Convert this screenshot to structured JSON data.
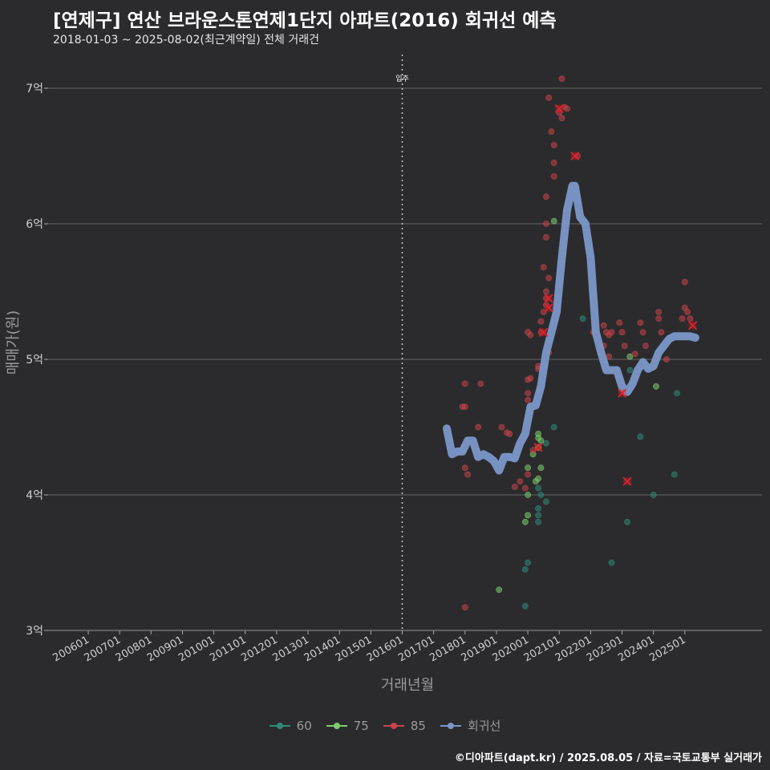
{
  "header": {
    "title": "[연제구] 연산 브라운스톤연제1단지 아파트(2016) 회귀선 예측",
    "subtitle": "2018-01-03 ~ 2025-08-02(최근계약일) 전체 거래건"
  },
  "caption": "©디아파트(dapt.kr) / 2025.08.05 / 자료=국토교통부 실거래가",
  "colors": {
    "background": "#2b2b2d",
    "grid": "#5a5a5a",
    "s60": "#2e8b7a",
    "s75": "#7ccd6b",
    "s85": "#c8434a",
    "regression": "#7b97c9",
    "highlight_x": "#e0202a"
  },
  "legend": {
    "items": [
      {
        "label": "60",
        "color": "#2e8b7a"
      },
      {
        "label": "75",
        "color": "#7ccd6b"
      },
      {
        "label": "85",
        "color": "#c8434a"
      },
      {
        "label": "회귀선",
        "color": "#7b97c9"
      }
    ]
  },
  "chart_data": {
    "type": "scatter",
    "title": "[연제구] 연산 브라운스톤연제1단지 아파트(2016) 회귀선 예측",
    "subtitle": "2018-01-03 ~ 2025-08-02(최근계약일) 전체 거래건",
    "xlabel": "거래년월",
    "ylabel": "매매가(원)",
    "xlim": [
      "2005-01",
      "2026-10"
    ],
    "ylim": [
      3.0,
      7.25
    ],
    "grid": true,
    "legend_position": "bottom",
    "x_ticks": [
      "200601",
      "200701",
      "200801",
      "200901",
      "201001",
      "201101",
      "201201",
      "201301",
      "201401",
      "201501",
      "201601",
      "201701",
      "201801",
      "201901",
      "202001",
      "202101",
      "202201",
      "202301",
      "202401",
      "202501"
    ],
    "y_ticks": [
      {
        "value": 3,
        "label": "3억"
      },
      {
        "value": 4,
        "label": "4억"
      },
      {
        "value": 5,
        "label": "5억"
      },
      {
        "value": 6,
        "label": "6억"
      },
      {
        "value": 7,
        "label": "7억"
      }
    ],
    "annotation": {
      "x": "2016-01",
      "label": "입주"
    },
    "series": [
      {
        "name": "60",
        "type": "scatter",
        "points": [
          [
            "2019-12",
            3.45
          ],
          [
            "2020-01",
            3.5
          ],
          [
            "2019-12",
            3.18
          ],
          [
            "2020-05",
            3.85
          ],
          [
            "2020-05",
            3.8
          ],
          [
            "2020-05",
            3.9
          ],
          [
            "2020-06",
            4.0
          ],
          [
            "2020-05",
            4.05
          ],
          [
            "2020-08",
            3.95
          ],
          [
            "2020-08",
            4.38
          ],
          [
            "2020-11",
            4.5
          ],
          [
            "2020-11",
            5.28
          ],
          [
            "2021-10",
            5.3
          ],
          [
            "2022-09",
            3.5
          ],
          [
            "2023-03",
            3.8
          ],
          [
            "2023-04",
            4.92
          ],
          [
            "2023-08",
            4.43
          ],
          [
            "2024-01",
            4.0
          ],
          [
            "2024-09",
            4.15
          ],
          [
            "2024-10",
            4.75
          ]
        ]
      },
      {
        "name": "75",
        "type": "scatter",
        "points": [
          [
            "2019-02",
            3.3
          ],
          [
            "2019-12",
            3.8
          ],
          [
            "2020-01",
            3.85
          ],
          [
            "2020-01",
            4.0
          ],
          [
            "2020-01",
            4.2
          ],
          [
            "2020-03",
            4.3
          ],
          [
            "2020-04",
            4.1
          ],
          [
            "2020-05",
            4.42
          ],
          [
            "2020-05",
            4.45
          ],
          [
            "2020-05",
            4.35
          ],
          [
            "2020-06",
            4.2
          ],
          [
            "2020-06",
            4.4
          ],
          [
            "2020-05",
            4.12
          ],
          [
            "2020-11",
            6.02
          ],
          [
            "2023-04",
            5.02
          ],
          [
            "2024-02",
            4.8
          ]
        ]
      },
      {
        "name": "85",
        "type": "scatter",
        "points": [
          [
            "2018-01",
            3.17
          ],
          [
            "2017-12",
            4.65
          ],
          [
            "2018-01",
            4.65
          ],
          [
            "2018-01",
            4.82
          ],
          [
            "2018-02",
            4.15
          ],
          [
            "2018-01",
            4.2
          ],
          [
            "2018-06",
            4.5
          ],
          [
            "2018-07",
            4.82
          ],
          [
            "2019-03",
            4.5
          ],
          [
            "2019-05",
            4.46
          ],
          [
            "2019-06",
            4.45
          ],
          [
            "2019-08",
            4.06
          ],
          [
            "2019-10",
            4.1
          ],
          [
            "2019-12",
            4.05
          ],
          [
            "2020-01",
            4.15
          ],
          [
            "2020-01",
            4.7
          ],
          [
            "2020-01",
            4.75
          ],
          [
            "2020-01",
            4.85
          ],
          [
            "2020-02",
            4.86
          ],
          [
            "2020-01",
            5.2
          ],
          [
            "2020-02",
            5.18
          ],
          [
            "2020-03",
            4.33
          ],
          [
            "2020-05",
            4.93
          ],
          [
            "2020-05",
            4.95
          ],
          [
            "2020-06",
            5.2
          ],
          [
            "2020-06",
            5.28
          ],
          [
            "2020-07",
            5.35
          ],
          [
            "2020-08",
            5.4
          ],
          [
            "2020-08",
            5.45
          ],
          [
            "2020-07",
            5.68
          ],
          [
            "2020-08",
            5.5
          ],
          [
            "2020-09",
            5.6
          ],
          [
            "2020-09",
            5.05
          ],
          [
            "2020-08",
            5.9
          ],
          [
            "2020-08",
            6.0
          ],
          [
            "2020-08",
            6.2
          ],
          [
            "2020-10",
            6.68
          ],
          [
            "2020-09",
            6.93
          ],
          [
            "2020-11",
            6.35
          ],
          [
            "2020-11",
            6.45
          ],
          [
            "2020-11",
            6.58
          ],
          [
            "2021-01",
            6.82
          ],
          [
            "2021-02",
            6.78
          ],
          [
            "2021-03",
            6.86
          ],
          [
            "2021-04",
            6.85
          ],
          [
            "2021-02",
            7.07
          ],
          [
            "2021-08",
            6.5
          ],
          [
            "2022-02",
            5.2
          ],
          [
            "2022-06",
            5.25
          ],
          [
            "2022-06",
            5.1
          ],
          [
            "2022-07",
            5.2
          ],
          [
            "2022-08",
            5.18
          ],
          [
            "2022-08",
            5.02
          ],
          [
            "2022-09",
            5.2
          ],
          [
            "2022-12",
            5.27
          ],
          [
            "2023-01",
            5.2
          ],
          [
            "2023-02",
            5.1
          ],
          [
            "2023-06",
            5.04
          ],
          [
            "2023-08",
            5.27
          ],
          [
            "2023-09",
            5.2
          ],
          [
            "2023-10",
            5.1
          ],
          [
            "2024-03",
            5.3
          ],
          [
            "2024-03",
            5.35
          ],
          [
            "2024-04",
            5.2
          ],
          [
            "2024-06",
            5.0
          ],
          [
            "2024-12",
            5.3
          ],
          [
            "2025-01",
            5.57
          ],
          [
            "2025-01",
            5.38
          ],
          [
            "2025-02",
            5.35
          ],
          [
            "2025-03",
            5.3
          ]
        ]
      },
      {
        "name": "highlight",
        "type": "x-marks",
        "points": [
          [
            "2020-05",
            4.35
          ],
          [
            "2020-07",
            5.2
          ],
          [
            "2020-09",
            5.38
          ],
          [
            "2020-09",
            5.45
          ],
          [
            "2021-01",
            6.85
          ],
          [
            "2021-07",
            6.5
          ],
          [
            "2023-01",
            4.75
          ],
          [
            "2023-03",
            4.1
          ],
          [
            "2025-04",
            5.25
          ]
        ]
      },
      {
        "name": "회귀선",
        "type": "line",
        "points": [
          [
            "2017-06",
            4.49
          ],
          [
            "2017-08",
            4.3
          ],
          [
            "2017-10",
            4.32
          ],
          [
            "2017-12",
            4.32
          ],
          [
            "2018-02",
            4.4
          ],
          [
            "2018-04",
            4.4
          ],
          [
            "2018-06",
            4.28
          ],
          [
            "2018-08",
            4.3
          ],
          [
            "2018-10",
            4.28
          ],
          [
            "2018-12",
            4.25
          ],
          [
            "2019-02",
            4.18
          ],
          [
            "2019-04",
            4.28
          ],
          [
            "2019-06",
            4.28
          ],
          [
            "2019-08",
            4.27
          ],
          [
            "2019-10",
            4.38
          ],
          [
            "2019-12",
            4.45
          ],
          [
            "2020-02",
            4.65
          ],
          [
            "2020-04",
            4.66
          ],
          [
            "2020-06",
            4.8
          ],
          [
            "2020-08",
            5.05
          ],
          [
            "2020-10",
            5.2
          ],
          [
            "2020-12",
            5.35
          ],
          [
            "2021-02",
            5.75
          ],
          [
            "2021-04",
            6.1
          ],
          [
            "2021-06",
            6.28
          ],
          [
            "2021-07",
            6.28
          ],
          [
            "2021-09",
            6.05
          ],
          [
            "2021-11",
            6.0
          ],
          [
            "2022-01",
            5.75
          ],
          [
            "2022-03",
            5.2
          ],
          [
            "2022-05",
            5.05
          ],
          [
            "2022-07",
            4.92
          ],
          [
            "2022-09",
            4.92
          ],
          [
            "2022-11",
            4.92
          ],
          [
            "2023-01",
            4.8
          ],
          [
            "2023-03",
            4.76
          ],
          [
            "2023-05",
            4.82
          ],
          [
            "2023-07",
            4.92
          ],
          [
            "2023-09",
            4.98
          ],
          [
            "2023-11",
            4.93
          ],
          [
            "2024-01",
            4.95
          ],
          [
            "2024-03",
            5.05
          ],
          [
            "2024-05",
            5.1
          ],
          [
            "2024-07",
            5.15
          ],
          [
            "2024-09",
            5.17
          ],
          [
            "2024-11",
            5.17
          ],
          [
            "2025-01",
            5.17
          ],
          [
            "2025-03",
            5.17
          ],
          [
            "2025-05",
            5.16
          ]
        ]
      }
    ]
  }
}
